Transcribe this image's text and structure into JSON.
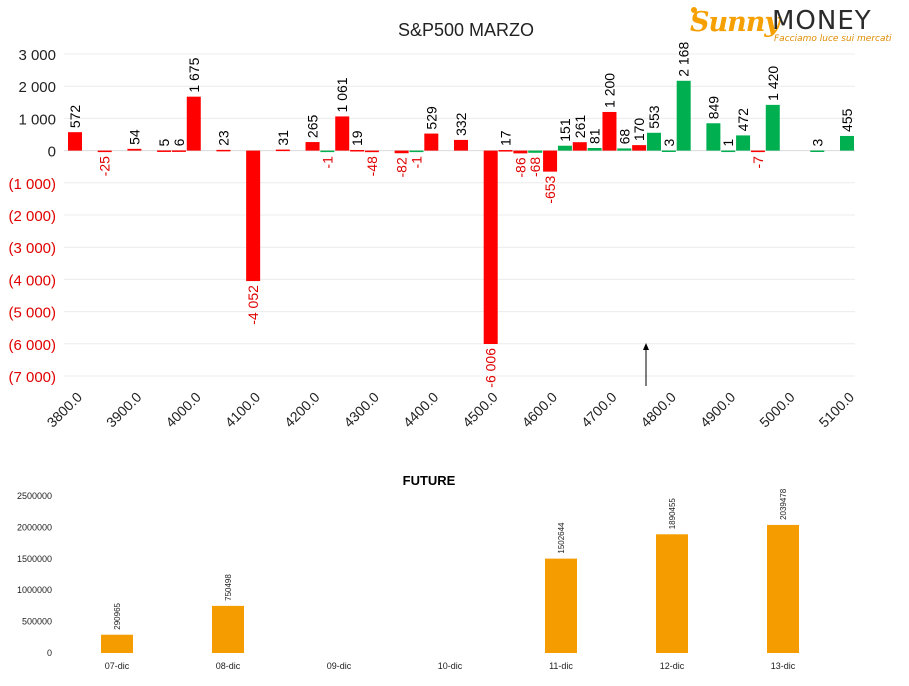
{
  "logo": {
    "brand_part1": "Sunny",
    "brand_part2": "MONEY",
    "tagline": "Facciamo luce sui mercati",
    "icon": "sun-icon"
  },
  "chart_data": [
    {
      "type": "bar",
      "title": "S&P500 MARZO",
      "xlabel": "",
      "ylabel": "",
      "ylim": [
        -7000,
        3000
      ],
      "yticks": [
        3000,
        2000,
        1000,
        0,
        -1000,
        -2000,
        -3000,
        -4000,
        -5000,
        -6000,
        -7000
      ],
      "ytick_labels": [
        "3 000",
        "2 000",
        "1 000",
        "0",
        "(1 000)",
        "(2 000)",
        "(3 000)",
        "(4 000)",
        "(5 000)",
        "(6 000)",
        "(7 000)"
      ],
      "xlim": [
        3800,
        5100
      ],
      "xticks": [
        3800,
        3900,
        4000,
        4100,
        4200,
        4300,
        4400,
        4500,
        4600,
        4700,
        4800,
        4900,
        5000,
        5100
      ],
      "xtick_labels": [
        "3800.0",
        "3900.0",
        "4000.0",
        "4100.0",
        "4200.0",
        "4300.0",
        "4400.0",
        "4500.0",
        "4600.0",
        "4700.0",
        "4800.0",
        "4900.0",
        "5000.0",
        "5100.0"
      ],
      "colors": {
        "red": "#ff0000",
        "green": "#00b050",
        "text": "#000000",
        "negative_text": "#e00000"
      },
      "grid": true,
      "marker": {
        "x": 4775,
        "direction": "up"
      },
      "bars": [
        {
          "x": 3800,
          "value": 572,
          "label": "572",
          "color": "red"
        },
        {
          "x": 3850,
          "value": -25,
          "label": "-25",
          "color": "red"
        },
        {
          "x": 3900,
          "value": 54,
          "label": "54",
          "color": "red"
        },
        {
          "x": 3950,
          "value": 5,
          "label": "5",
          "color": "red"
        },
        {
          "x": 3975,
          "value": 6,
          "label": "6",
          "color": "red"
        },
        {
          "x": 4000,
          "value": 1675,
          "label": "1 675",
          "color": "red"
        },
        {
          "x": 4050,
          "value": 23,
          "label": "23",
          "color": "red"
        },
        {
          "x": 4100,
          "value": -4052,
          "label": "-4 052",
          "color": "red"
        },
        {
          "x": 4150,
          "value": 31,
          "label": "31",
          "color": "red"
        },
        {
          "x": 4200,
          "value": 265,
          "label": "265",
          "color": "red"
        },
        {
          "x": 4225,
          "value": -1,
          "label": "-1",
          "color": "green"
        },
        {
          "x": 4250,
          "value": 1061,
          "label": "1 061",
          "color": "red"
        },
        {
          "x": 4275,
          "value": 19,
          "label": "19",
          "color": "red"
        },
        {
          "x": 4300,
          "value": -48,
          "label": "-48",
          "color": "red"
        },
        {
          "x": 4350,
          "value": -82,
          "label": "-82",
          "color": "red"
        },
        {
          "x": 4375,
          "value": -1,
          "label": "-1",
          "color": "green"
        },
        {
          "x": 4400,
          "value": 529,
          "label": "529",
          "color": "red"
        },
        {
          "x": 4450,
          "value": 332,
          "label": "332",
          "color": "red"
        },
        {
          "x": 4500,
          "value": -6006,
          "label": "-6 006",
          "color": "red"
        },
        {
          "x": 4525,
          "value": 17,
          "label": "17",
          "color": "red"
        },
        {
          "x": 4550,
          "value": -86,
          "label": "-86",
          "color": "red"
        },
        {
          "x": 4575,
          "value": -68,
          "label": "-68",
          "color": "green"
        },
        {
          "x": 4600,
          "value": -653,
          "label": "-653",
          "color": "red"
        },
        {
          "x": 4625,
          "value": 151,
          "label": "151",
          "color": "green"
        },
        {
          "x": 4650,
          "value": 261,
          "label": "261",
          "color": "red"
        },
        {
          "x": 4675,
          "value": 81,
          "label": "81",
          "color": "green"
        },
        {
          "x": 4700,
          "value": 1200,
          "label": "1 200",
          "color": "red"
        },
        {
          "x": 4725,
          "value": 68,
          "label": "68",
          "color": "green"
        },
        {
          "x": 4750,
          "value": 170,
          "label": "170",
          "color": "red"
        },
        {
          "x": 4775,
          "value": 553,
          "label": "553",
          "color": "green"
        },
        {
          "x": 4800,
          "value": 3,
          "label": "3",
          "color": "green"
        },
        {
          "x": 4825,
          "value": 2168,
          "label": "2 168",
          "color": "green"
        },
        {
          "x": 4875,
          "value": 849,
          "label": "849",
          "color": "green"
        },
        {
          "x": 4900,
          "value": 1,
          "label": "1",
          "color": "green"
        },
        {
          "x": 4925,
          "value": 472,
          "label": "472",
          "color": "green"
        },
        {
          "x": 4950,
          "value": -7,
          "label": "-7",
          "color": "red"
        },
        {
          "x": 4975,
          "value": 1420,
          "label": "1 420",
          "color": "green"
        },
        {
          "x": 5050,
          "value": 3,
          "label": "3",
          "color": "green"
        },
        {
          "x": 5100,
          "value": 455,
          "label": "455",
          "color": "green"
        }
      ]
    },
    {
      "type": "bar",
      "title": "FUTURE",
      "xlabel": "",
      "ylabel": "",
      "ylim": [
        0,
        2500000
      ],
      "yticks": [
        0,
        500000,
        1000000,
        1500000,
        2000000,
        2500000
      ],
      "ytick_labels": [
        "0",
        "500000",
        "1000000",
        "1500000",
        "2000000",
        "2500000"
      ],
      "categories": [
        "07-dic",
        "08-dic",
        "09-dic",
        "10-dic",
        "11-dic",
        "12-dic",
        "13-dic"
      ],
      "values": [
        290965,
        750498,
        null,
        null,
        1502644,
        1890455,
        2039478
      ],
      "value_labels": [
        "290965",
        "750498",
        "",
        "",
        "1502644",
        "1890455",
        "2039478"
      ],
      "colors": {
        "bar": "#f59c00"
      },
      "grid": false
    }
  ]
}
